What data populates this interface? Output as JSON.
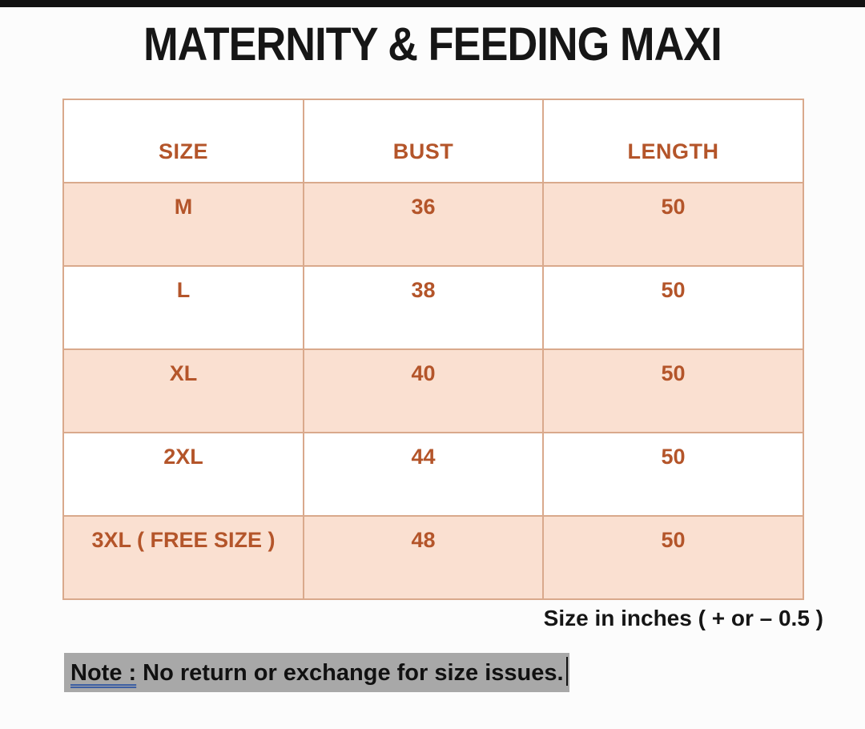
{
  "page": {
    "title": "MATERNITY & FEEDING MAXI",
    "size_note": "Size in inches ( + or  – 0.5 )",
    "note_label": "Note :",
    "note_text": "No return or exchange for size issues."
  },
  "chart_data": {
    "type": "table",
    "title": "Maternity & Feeding Maxi size chart",
    "columns": [
      "SIZE",
      "BUST",
      "LENGTH"
    ],
    "rows": [
      [
        "M",
        "36",
        "50"
      ],
      [
        "L",
        "38",
        "50"
      ],
      [
        "XL",
        "40",
        "50"
      ],
      [
        "2XL",
        "44",
        "50"
      ],
      [
        "3XL ( FREE SIZE )",
        "48",
        "50"
      ]
    ],
    "units": "inches",
    "tolerance": "+ or - 0.5"
  },
  "colors": {
    "accent_text": "#b4552a",
    "row_peach": "#fae0d1",
    "table_border": "#d9a98c",
    "note_highlight": "#a8a8a8",
    "note_underline": "#3d5fa3",
    "top_bar": "#121212"
  }
}
